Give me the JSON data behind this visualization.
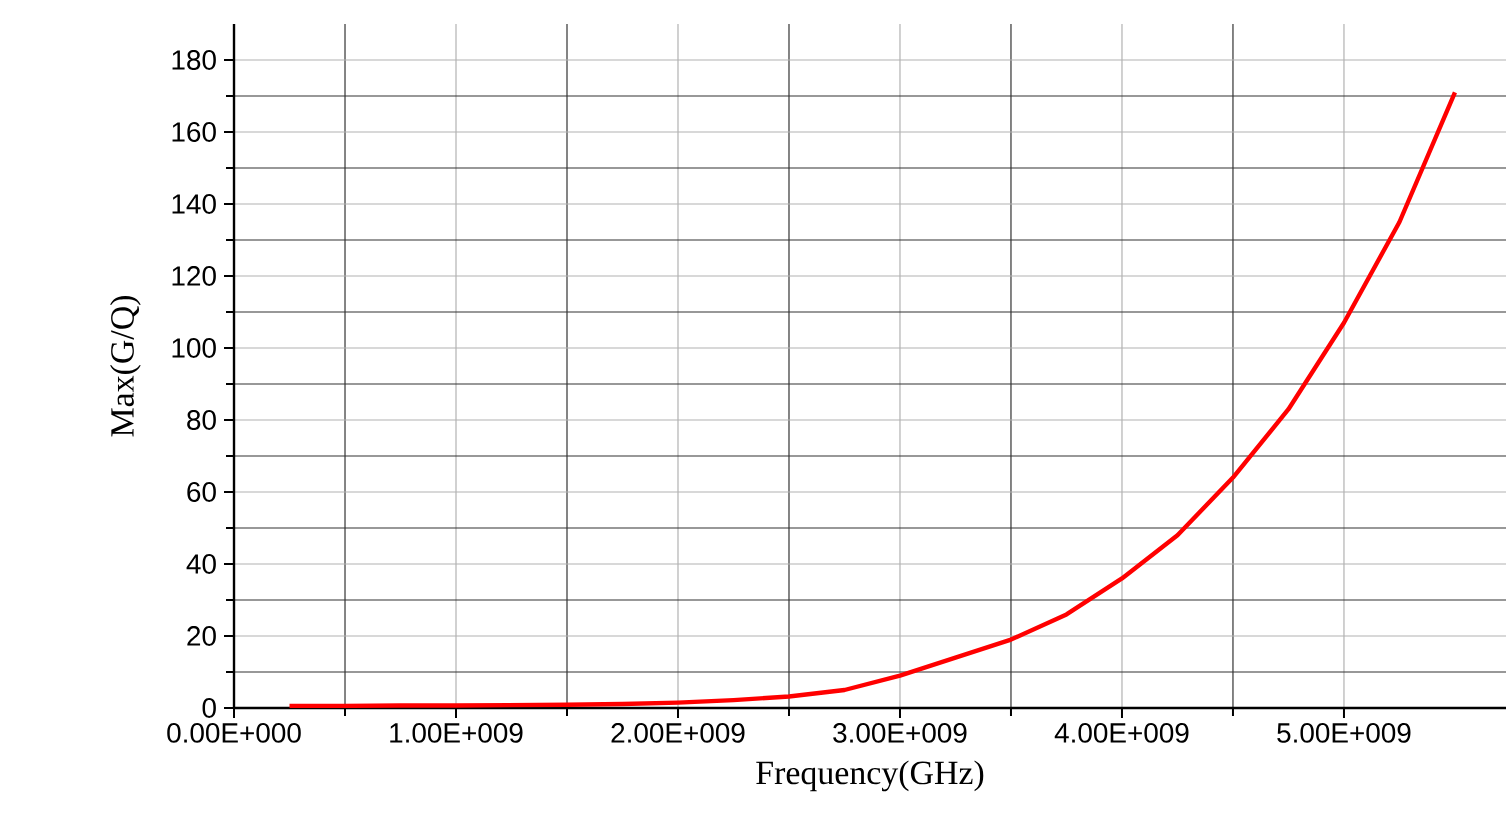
{
  "chart_data": {
    "type": "line",
    "xlabel": "Frequency(GHz)",
    "ylabel": "Max(G/Q)",
    "x": [
      250000000,
      500000000,
      750000000,
      1000000000,
      1250000000,
      1500000000,
      1750000000,
      2000000000,
      2250000000,
      2500000000,
      2750000000,
      3000000000,
      3250000000,
      3500000000,
      3750000000,
      4000000000,
      4250000000,
      4500000000,
      4750000000,
      5000000000,
      5250000000,
      5500000000
    ],
    "series": [
      {
        "color": "#ff0000",
        "values": [
          0.6,
          0.6,
          0.7,
          0.7,
          0.8,
          0.9,
          1.1,
          1.5,
          2.2,
          3.2,
          5,
          9,
          14,
          19,
          26,
          36,
          48,
          64,
          83,
          107,
          135,
          171
        ]
      }
    ],
    "xlim": [
      0,
      5730000000
    ],
    "ylim": [
      0,
      190
    ],
    "xticks": [
      {
        "value": 0,
        "label": "0.00E+000"
      },
      {
        "value": 1000000000,
        "label": "1.00E+009"
      },
      {
        "value": 2000000000,
        "label": "2.00E+009"
      },
      {
        "value": 3000000000,
        "label": "3.00E+009"
      },
      {
        "value": 4000000000,
        "label": "4.00E+009"
      },
      {
        "value": 5000000000,
        "label": "5.00E+009"
      }
    ],
    "yticks": [
      0,
      20,
      40,
      60,
      80,
      100,
      120,
      140,
      160,
      180
    ],
    "grid": true,
    "marker": "none",
    "line_style": "solid"
  }
}
